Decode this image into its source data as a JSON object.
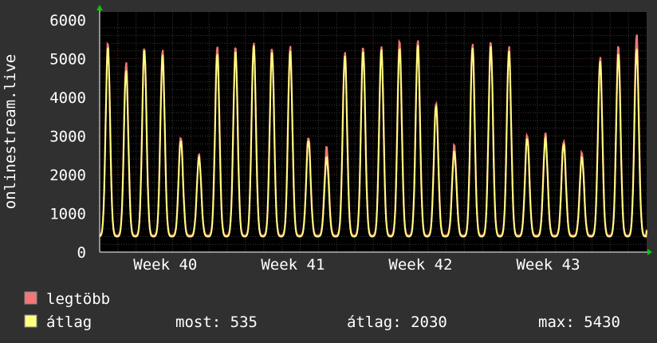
{
  "chart_data": {
    "type": "line",
    "ylabel": "onlinestream.live",
    "ylim": [
      0,
      6000
    ],
    "yticks": [
      0,
      1000,
      2000,
      3000,
      4000,
      5000,
      6000
    ],
    "xticks": [
      "Week 40",
      "Week 41",
      "Week 42",
      "Week 43"
    ],
    "grid": true,
    "legend_placement": "bottom",
    "colors": {
      "background": "#303030",
      "plot_background": "#000000",
      "grid_minor": "#3a3a3a",
      "grid_major": "#5a2a2a",
      "axis_arrow": "#00cc00",
      "max_series": "#f07878",
      "avg_series": "#ffff80"
    },
    "daily_peaks": {
      "max": [
        5400,
        4900,
        5300,
        5200,
        3000,
        2500,
        5350,
        5300,
        5400,
        5300,
        5300,
        3000,
        2700,
        5200,
        5300,
        5300,
        5500,
        5450,
        3900,
        2750,
        5400,
        5450,
        5300,
        3050,
        3050,
        2900,
        2550,
        5050,
        5350,
        5600
      ],
      "avg": [
        5300,
        4700,
        5250,
        5100,
        2900,
        2450,
        5150,
        5200,
        5350,
        5200,
        5200,
        2900,
        2450,
        5100,
        5200,
        5250,
        5300,
        5350,
        3800,
        2600,
        5300,
        5350,
        5200,
        2950,
        2950,
        2800,
        2450,
        4950,
        5150,
        5250
      ]
    },
    "daily_trough": 400,
    "series": [
      {
        "name": "legtöbb",
        "color": "#f07878"
      },
      {
        "name": "átlag",
        "color": "#ffff80"
      }
    ],
    "stats": {
      "most": "most: 535",
      "atlag": "átlag: 2030",
      "max": "max: 5430"
    }
  }
}
